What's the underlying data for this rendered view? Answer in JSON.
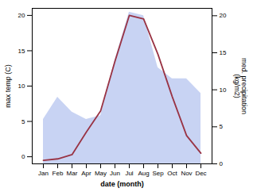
{
  "chart_data": {
    "type": "line",
    "categories": [
      "Jan",
      "Feb",
      "Mar",
      "Apr",
      "May",
      "Jun",
      "Jul",
      "Aug",
      "Sep",
      "Oct",
      "Nov",
      "Dec"
    ],
    "series": [
      {
        "type": "line",
        "color": "#993344",
        "values": [
          -0.5,
          -0.3,
          0.3,
          3.5,
          6.5,
          13.5,
          20.0,
          19.5,
          14.5,
          8.5,
          3.0,
          0.5
        ]
      },
      {
        "type": "area",
        "color": "#b0c0ee",
        "axis": "y2",
        "values": [
          6.0,
          9.0,
          7.0,
          6.0,
          6.5,
          14.0,
          20.5,
          20.0,
          13.0,
          11.5,
          11.5,
          9.5
        ]
      }
    ],
    "xlabel": "date (month)",
    "ylabel": "max temp (C)",
    "y2label": "med. precipitation\n(kg/m2)",
    "ylim": [
      -1,
      21
    ],
    "yticks": [
      0,
      5,
      10,
      15,
      20
    ],
    "y2lim": [
      0,
      21
    ],
    "y2ticks": [
      0,
      5,
      10,
      15,
      20
    ],
    "grid": false
  }
}
